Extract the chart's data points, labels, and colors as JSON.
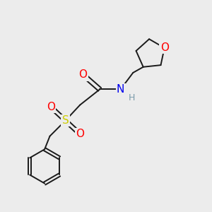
{
  "background_color": "#ececec",
  "bond_color": "#1a1a1a",
  "atom_colors": {
    "O": "#ff0000",
    "N": "#0000ee",
    "S": "#cccc00",
    "H": "#7a9aaa",
    "C": "#1a1a1a"
  },
  "font_size_atoms": 11,
  "font_size_h": 9,
  "lw": 1.4
}
